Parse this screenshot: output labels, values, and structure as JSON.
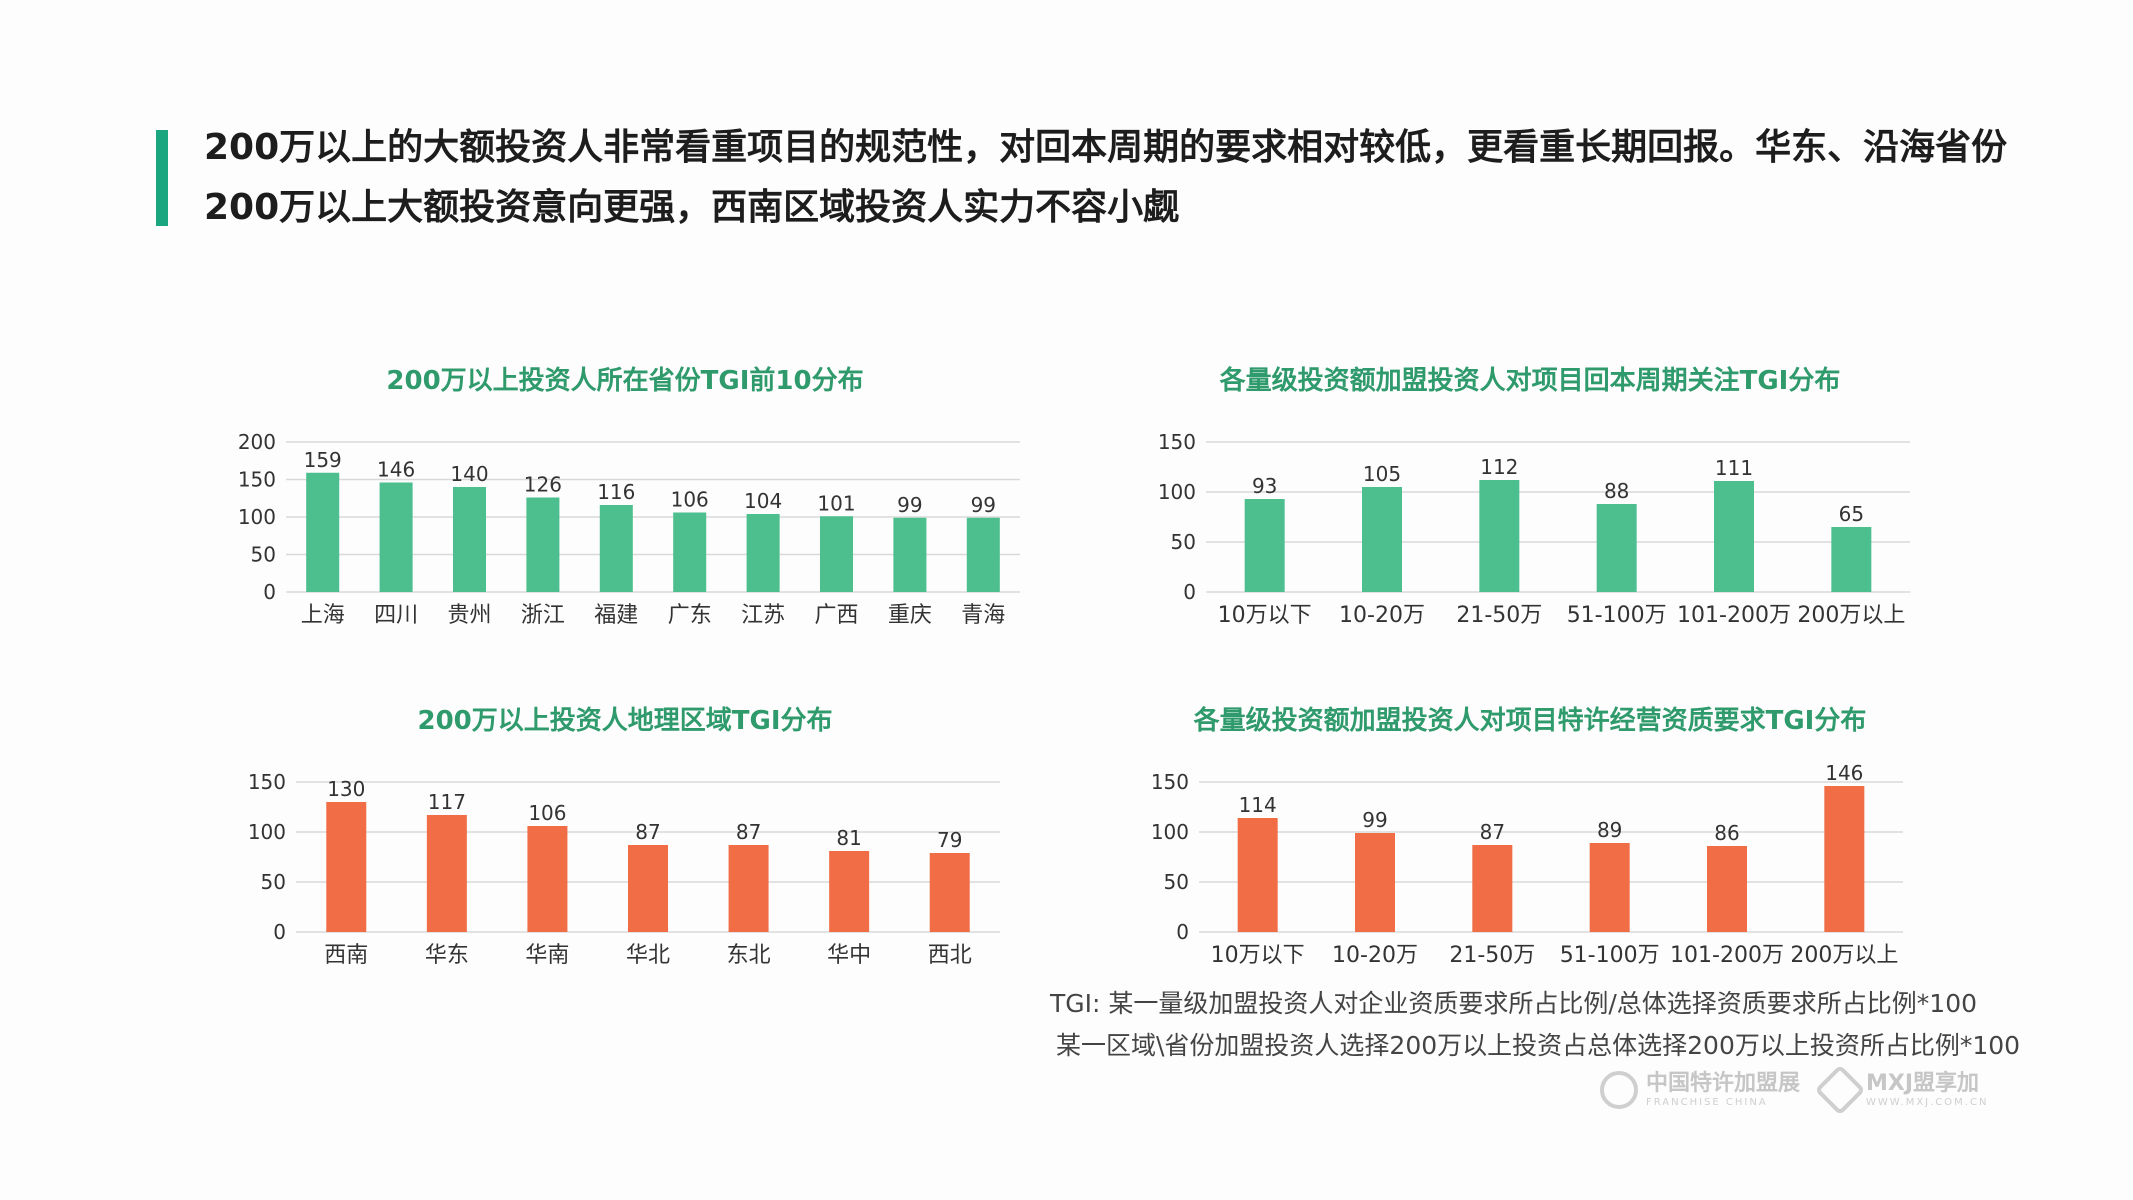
{
  "headline": {
    "line1": "200万以上的大额投资人非常看重项目的规范性，对回本周期的要求相对较低，更看重长期回报。华东、沿海省份",
    "line2": "200万以上大额投资意向更强，西南区域投资人实力不容小觑"
  },
  "colors": {
    "accent": "#1aa780",
    "green_bar": "#4dbf8f",
    "orange_bar": "#f06d45",
    "title_green": "#2f9a6c"
  },
  "chart_data": [
    {
      "id": "province",
      "type": "bar",
      "title": "200万以上投资人所在省份TGI前10分布",
      "categories": [
        "上海",
        "四川",
        "贵州",
        "浙江",
        "福建",
        "广东",
        "江苏",
        "广西",
        "重庆",
        "青海"
      ],
      "values": [
        159,
        146,
        140,
        126,
        116,
        106,
        104,
        101,
        99,
        99
      ],
      "ylim": [
        0,
        200
      ],
      "yticks": [
        0,
        50,
        100,
        150,
        200
      ],
      "grid": true
    },
    {
      "id": "payback",
      "type": "bar",
      "title": "各量级投资额加盟投资人对项目回本周期关注TGI分布",
      "categories": [
        "10万以下",
        "10-20万",
        "21-50万",
        "51-100万",
        "101-200万",
        "200万以上"
      ],
      "values": [
        93,
        105,
        112,
        88,
        111,
        65
      ],
      "ylim": [
        0,
        150
      ],
      "yticks": [
        0,
        50,
        100,
        150
      ],
      "grid": true
    },
    {
      "id": "region",
      "type": "bar",
      "title": "200万以上投资人地理区域TGI分布",
      "categories": [
        "西南",
        "华东",
        "华南",
        "华北",
        "东北",
        "华中",
        "西北"
      ],
      "values": [
        130,
        117,
        106,
        87,
        87,
        81,
        79
      ],
      "ylim": [
        0,
        150
      ],
      "yticks": [
        0,
        50,
        100,
        150
      ],
      "grid": true
    },
    {
      "id": "qualification",
      "type": "bar",
      "title": "各量级投资额加盟投资人对项目特许经营资质要求TGI分布",
      "categories": [
        "10万以下",
        "10-20万",
        "21-50万",
        "51-100万",
        "101-200万",
        "200万以上"
      ],
      "values": [
        114,
        99,
        87,
        89,
        86,
        146
      ],
      "ylim": [
        0,
        150
      ],
      "yticks": [
        0,
        50,
        100,
        150
      ],
      "grid": true
    }
  ],
  "notes": {
    "line1": "TGI: 某一量级加盟投资人对企业资质要求所占比例/总体选择资质要求所占比例*100",
    "line2": "某一区域\\省份加盟投资人选择200万以上投资占总体选择200万以上投资所占比例*100"
  },
  "brands": [
    {
      "cn": "中国特许加盟展",
      "en": "FRANCHISE CHINA",
      "icon": "franchise-logo-icon"
    },
    {
      "cn": "MXJ盟享加",
      "en": "WWW.MXJ.COM.CN",
      "icon": "mxj-logo-icon"
    }
  ]
}
